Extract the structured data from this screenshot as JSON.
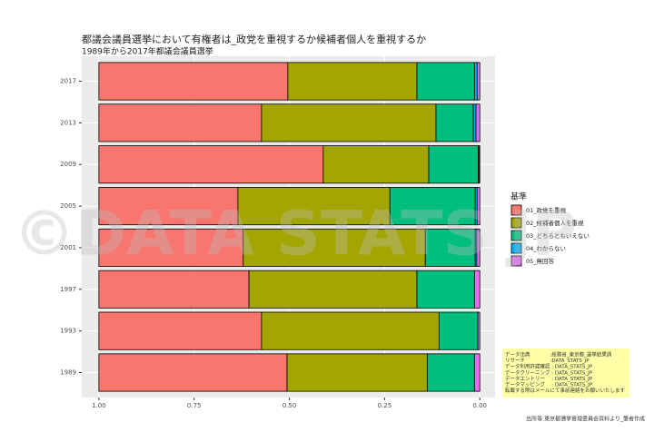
{
  "chart_data": {
    "type": "stacked-barh",
    "title": "都議会議員選挙において有権者は_政党を重視するか候補者個人を重視するか",
    "subtitle": "1989年から2017年都議会議員選挙",
    "categories": [
      "1989",
      "1993",
      "1997",
      "2001",
      "2005",
      "2009",
      "2013",
      "2017"
    ],
    "series": [
      {
        "name": "01_政党を重視",
        "color": "#F8766D",
        "values": [
          0.494,
          0.427,
          0.394,
          0.379,
          0.365,
          0.589,
          0.427,
          0.496
        ]
      },
      {
        "name": "02_候補者個人を重視",
        "color": "#A3A500",
        "values": [
          0.368,
          0.466,
          0.441,
          0.478,
          0.399,
          0.277,
          0.458,
          0.339
        ]
      },
      {
        "name": "03_どちらともいえない",
        "color": "#00BF7D",
        "values": [
          0.124,
          0.102,
          0.151,
          0.131,
          0.224,
          0.13,
          0.098,
          0.151
        ]
      },
      {
        "name": "04_わからない",
        "color": "#00B0F6",
        "values": [
          0,
          0,
          0,
          0.004,
          0.005,
          0.002,
          0.007,
          0.007
        ]
      },
      {
        "name": "05_無回答",
        "color": "#E76BF3",
        "values": [
          0.014,
          0.005,
          0.014,
          0.008,
          0.007,
          0.002,
          0.01,
          0.007
        ]
      }
    ],
    "xlim": [
      1.045,
      -0.04
    ],
    "xticks": [
      {
        "value": 1,
        "label": "1.00"
      },
      {
        "value": 0.75,
        "label": "0.75"
      },
      {
        "value": 0.5,
        "label": "0.50"
      },
      {
        "value": 0.25,
        "label": "0.25"
      },
      {
        "value": 0,
        "label": "0.00"
      }
    ],
    "grid": true,
    "legend_title": "基準",
    "legend": "right",
    "caption": "出所等:東京都選挙管理委員会資料より_筆者作成",
    "watermark": "©DATA STATS JP",
    "credits": [
      "データ出典　　　　:総務省_東京都_選挙結果調",
      "リサーチ　　　　　:DATA_STATS_JP",
      "データ利用許諾確認 : DATA_STATS_JP",
      "データクリーニング : DATA_STATS_JP",
      "データエントリー　 : DATA_STATS_JP",
      "データマッピング　 : DATA_STATS_JP",
      "転載する際はメールにて事前連絡をお願いいたします"
    ]
  }
}
